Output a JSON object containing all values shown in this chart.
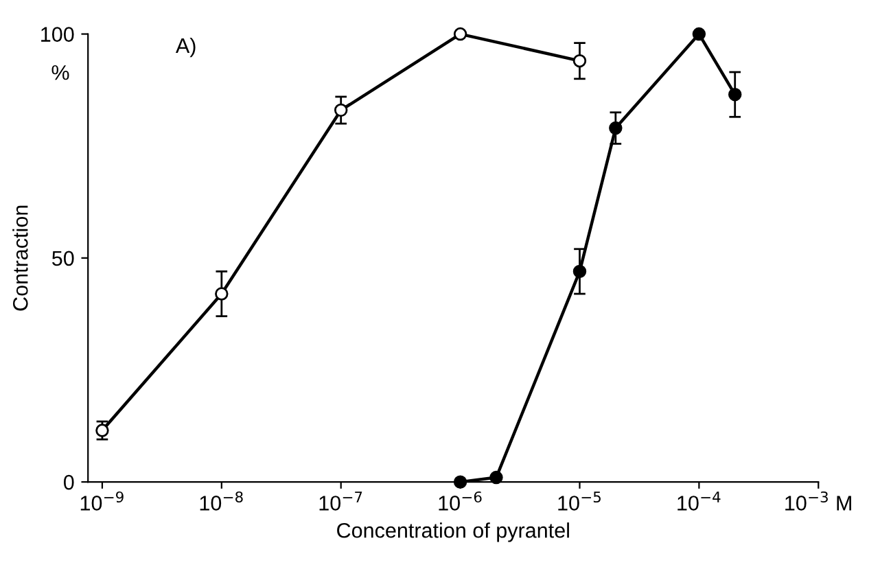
{
  "chart_data": {
    "type": "line",
    "xlabel": "Concentration of pyrantel",
    "ylabel": "Contraction",
    "annotations": [
      "A)",
      "%"
    ],
    "log": "x",
    "xlim": [
      7.6e-10,
      0.001
    ],
    "ylim": [
      0,
      100
    ],
    "xticks": [
      {
        "value": 1e-09,
        "label": "10$^{−9}$"
      },
      {
        "value": 1e-08,
        "label": "10$^{−8}$"
      },
      {
        "value": 1e-07,
        "label": "10$^{−7}$"
      },
      {
        "value": 1e-06,
        "label": "10$^{−6}$"
      },
      {
        "value": 1e-05,
        "label": "10$^{−5}$"
      },
      {
        "value": 0.0001,
        "label": "10$^{−4}$"
      },
      {
        "value": 0.001,
        "label": "10$^{−3}$ M"
      }
    ],
    "yticks": [
      0,
      50,
      100
    ],
    "grid": false,
    "marker": "circle",
    "line_style": "solid",
    "series": [
      {
        "color": "#000000",
        "x": [
          1e-09,
          1e-08,
          1e-07,
          1e-06,
          1e-05
        ],
        "values": [
          11.5,
          42,
          83,
          100,
          94
        ],
        "errors": [
          2,
          5,
          3,
          null,
          4
        ]
      },
      {
        "color": "#000000",
        "x": [
          1e-06,
          2e-06,
          1e-05,
          2e-05,
          0.0001,
          0.0002
        ],
        "values": [
          0,
          1,
          47,
          79,
          100,
          86.5
        ],
        "errors": [
          null,
          null,
          5,
          3.5,
          null,
          5
        ]
      }
    ]
  }
}
